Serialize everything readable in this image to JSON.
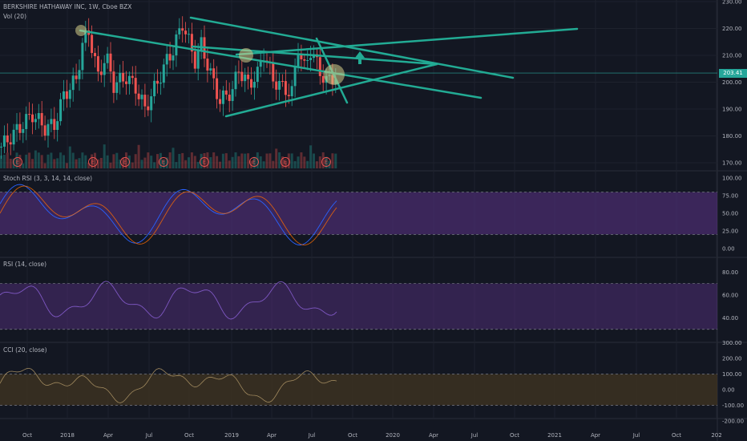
{
  "header": {
    "symbol_title": "BERKSHIRE HATHAWAY INC, 1W, Cboe BZX",
    "volume_label": "Vol (20)"
  },
  "last_price": "203.41",
  "indicators": {
    "stoch_rsi": "Stoch RSI (3, 3, 14, 14, close)",
    "rsi": "RSI (14, close)",
    "cci": "CCI (20, close)"
  },
  "price_axis": [
    "230.00",
    "220.00",
    "210.00",
    "200.00",
    "190.00",
    "180.00",
    "170.00"
  ],
  "stoch_axis": [
    "100.00",
    "75.00",
    "50.00",
    "25.00",
    "0.00"
  ],
  "rsi_axis": [
    "80.00",
    "60.00",
    "40.00"
  ],
  "cci_axis": [
    "300.00",
    "200.00",
    "100.00",
    "0.00",
    "-100.00",
    "-200.00"
  ],
  "time_axis": [
    "Oct",
    "2018",
    "Apr",
    "Jul",
    "Oct",
    "2019",
    "Apr",
    "Jul",
    "Oct",
    "2020",
    "Apr",
    "Jul",
    "Oct",
    "2021",
    "Apr",
    "Jul",
    "Oct",
    "202"
  ],
  "earnings_marker": "E",
  "colors": {
    "background": "#131722",
    "bull": "#26a69a",
    "bear": "#ef5350",
    "trendline": "#22ab94",
    "band": "#4a2c6e",
    "cci_band": "#3a3021",
    "grid": "#1e222d"
  },
  "icons": [
    "up-arrow-icon",
    "circle-highlight-icon"
  ]
}
